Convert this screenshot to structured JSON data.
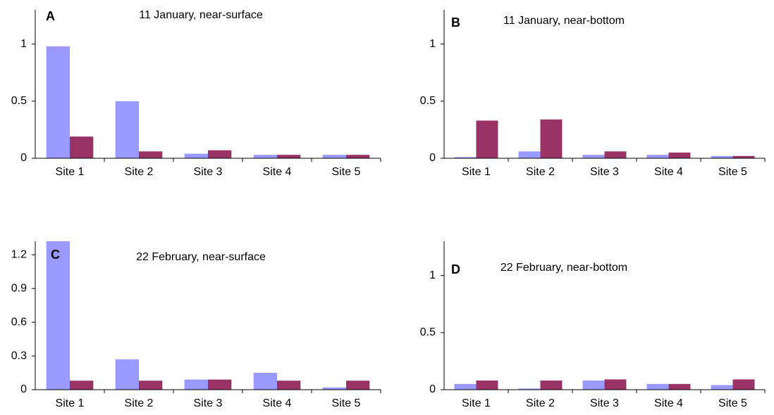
{
  "chart_data": [
    {
      "type": "bar",
      "label": "A",
      "title": "11 January, near-surface",
      "categories": [
        "Site 1",
        "Site 2",
        "Site 3",
        "Site 4",
        "Site 5"
      ],
      "series": [
        {
          "color": "#9999ff",
          "values": [
            0.98,
            0.5,
            0.04,
            0.03,
            0.03
          ]
        },
        {
          "color": "#993366",
          "values": [
            0.19,
            0.06,
            0.07,
            0.03,
            0.03
          ]
        }
      ],
      "ylim": [
        0,
        1.3
      ],
      "yticks": [
        0,
        0.5,
        1
      ]
    },
    {
      "type": "bar",
      "label": "B",
      "title": "11 January, near-bottom",
      "categories": [
        "Site 1",
        "Site 2",
        "Site 3",
        "Site 4",
        "Site 5"
      ],
      "series": [
        {
          "color": "#9999ff",
          "values": [
            0.01,
            0.06,
            0.03,
            0.03,
            0.02
          ]
        },
        {
          "color": "#993366",
          "values": [
            0.33,
            0.34,
            0.06,
            0.05,
            0.02
          ]
        }
      ],
      "ylim": [
        0,
        1.3
      ],
      "yticks": [
        0,
        0.5,
        1
      ]
    },
    {
      "type": "bar",
      "label": "C",
      "title": "22 February, near-surface",
      "categories": [
        "Site 1",
        "Site 2",
        "Site 3",
        "Site 4",
        "Site 5"
      ],
      "series": [
        {
          "color": "#9999ff",
          "values": [
            1.32,
            0.27,
            0.09,
            0.15,
            0.02
          ]
        },
        {
          "color": "#993366",
          "values": [
            0.08,
            0.08,
            0.09,
            0.08,
            0.08
          ]
        }
      ],
      "ylim": [
        0,
        1.32
      ],
      "yticks": [
        0,
        0.3,
        0.6,
        0.9,
        1.2
      ]
    },
    {
      "type": "bar",
      "label": "D",
      "title": "22 February, near-bottom",
      "categories": [
        "Site 1",
        "Site 2",
        "Site 3",
        "Site 4",
        "Site 5"
      ],
      "series": [
        {
          "color": "#9999ff",
          "values": [
            0.05,
            0.01,
            0.08,
            0.05,
            0.04
          ]
        },
        {
          "color": "#993366",
          "values": [
            0.08,
            0.08,
            0.09,
            0.05,
            0.09
          ]
        }
      ],
      "ylim": [
        0,
        1.3
      ],
      "yticks": [
        0,
        0.5,
        1
      ]
    }
  ]
}
